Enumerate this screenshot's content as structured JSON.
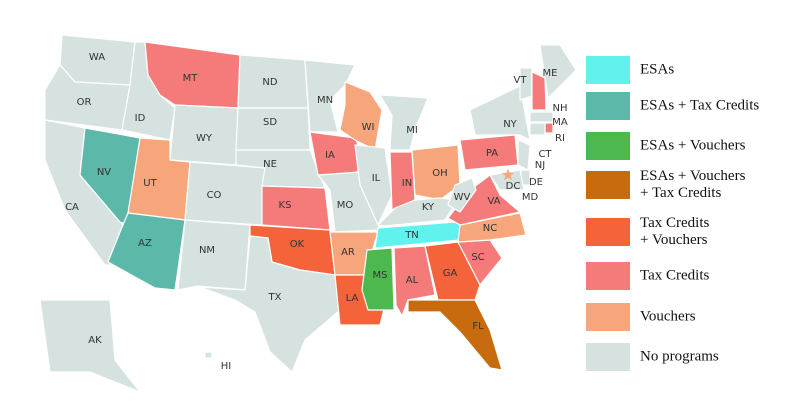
{
  "legend": {
    "items": [
      {
        "lines": [
          "ESAs"
        ],
        "color": "#62f2ee"
      },
      {
        "lines": [
          "ESAs + Tax Credits"
        ],
        "color": "#5cb9aa"
      },
      {
        "lines": [
          "ESAs + Vouchers"
        ],
        "color": "#4db84e"
      },
      {
        "lines": [
          "ESAs + Vouchers",
          "+ Tax Credits"
        ],
        "color": "#c86a0e"
      },
      {
        "lines": [
          "Tax Credits",
          "+ Vouchers"
        ],
        "color": "#f4633a"
      },
      {
        "lines": [
          "Tax Credits"
        ],
        "color": "#f57b7b"
      },
      {
        "lines": [
          "Vouchers"
        ],
        "color": "#f7a67c"
      },
      {
        "lines": [
          "No programs"
        ],
        "color": "#d5e2e0"
      }
    ]
  },
  "states": [
    {
      "abbr": "WA",
      "program": 7
    },
    {
      "abbr": "OR",
      "program": 7
    },
    {
      "abbr": "CA",
      "program": 7
    },
    {
      "abbr": "NV",
      "program": 1
    },
    {
      "abbr": "ID",
      "program": 7
    },
    {
      "abbr": "MT",
      "program": 5
    },
    {
      "abbr": "WY",
      "program": 7
    },
    {
      "abbr": "UT",
      "program": 6
    },
    {
      "abbr": "AZ",
      "program": 1
    },
    {
      "abbr": "CO",
      "program": 7
    },
    {
      "abbr": "NM",
      "program": 7
    },
    {
      "abbr": "ND",
      "program": 7
    },
    {
      "abbr": "SD",
      "program": 7
    },
    {
      "abbr": "NE",
      "program": 7
    },
    {
      "abbr": "KS",
      "program": 5
    },
    {
      "abbr": "OK",
      "program": 4
    },
    {
      "abbr": "TX",
      "program": 7
    },
    {
      "abbr": "MN",
      "program": 7
    },
    {
      "abbr": "IA",
      "program": 5
    },
    {
      "abbr": "MO",
      "program": 7
    },
    {
      "abbr": "AR",
      "program": 6
    },
    {
      "abbr": "LA",
      "program": 4
    },
    {
      "abbr": "WI",
      "program": 6
    },
    {
      "abbr": "IL",
      "program": 7
    },
    {
      "abbr": "MI",
      "program": 7
    },
    {
      "abbr": "IN",
      "program": 5
    },
    {
      "abbr": "OH",
      "program": 6
    },
    {
      "abbr": "KY",
      "program": 7
    },
    {
      "abbr": "TN",
      "program": 0
    },
    {
      "abbr": "MS",
      "program": 2
    },
    {
      "abbr": "AL",
      "program": 5
    },
    {
      "abbr": "GA",
      "program": 4
    },
    {
      "abbr": "FL",
      "program": 3
    },
    {
      "abbr": "SC",
      "program": 5
    },
    {
      "abbr": "NC",
      "program": 6
    },
    {
      "abbr": "VA",
      "program": 5
    },
    {
      "abbr": "WV",
      "program": 7
    },
    {
      "abbr": "PA",
      "program": 5
    },
    {
      "abbr": "NY",
      "program": 7
    },
    {
      "abbr": "VT",
      "program": 7
    },
    {
      "abbr": "NH",
      "program": 5
    },
    {
      "abbr": "ME",
      "program": 7
    },
    {
      "abbr": "MA",
      "program": 7
    },
    {
      "abbr": "RI",
      "program": 5
    },
    {
      "abbr": "CT",
      "program": 7
    },
    {
      "abbr": "NJ",
      "program": 7
    },
    {
      "abbr": "DE",
      "program": 7
    },
    {
      "abbr": "MD",
      "program": 7
    },
    {
      "abbr": "DC",
      "program": 6
    },
    {
      "abbr": "AK",
      "program": 7
    },
    {
      "abbr": "HI",
      "program": 7
    }
  ]
}
